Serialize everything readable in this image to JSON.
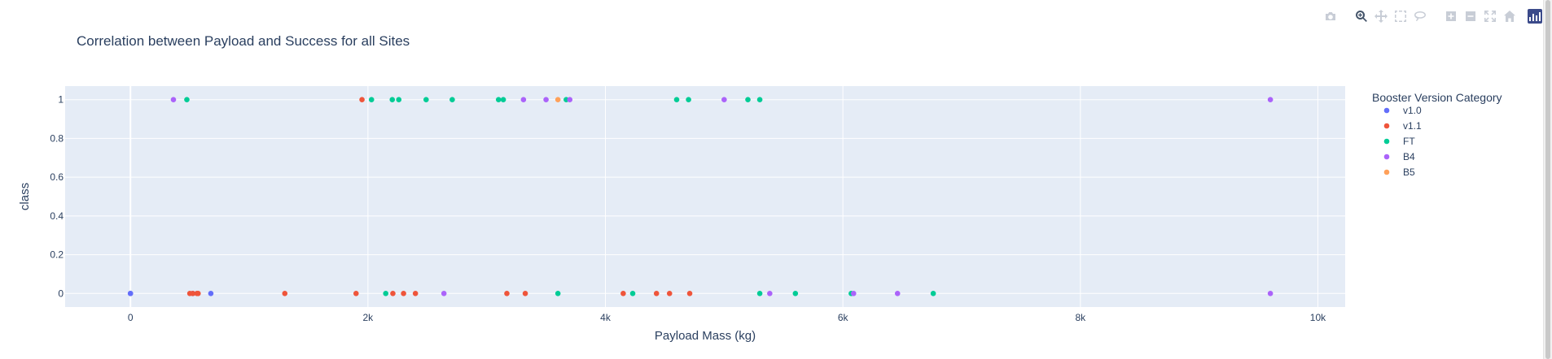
{
  "chart_data": {
    "type": "scatter",
    "title": "Correlation between Payload and Success for all Sites",
    "xlabel": "Payload Mass (kg)",
    "ylabel": "class",
    "xlim": [
      -550,
      10230
    ],
    "ylim": [
      -0.07,
      1.07
    ],
    "x_ticks": [
      0,
      2000,
      4000,
      6000,
      8000,
      10000
    ],
    "x_tick_labels": [
      "0",
      "2k",
      "4k",
      "6k",
      "8k",
      "10k"
    ],
    "y_ticks": [
      0,
      0.2,
      0.4,
      0.6,
      0.8,
      1
    ],
    "y_tick_labels": [
      "0",
      "0.2",
      "0.4",
      "0.6",
      "0.8",
      "1"
    ],
    "grid": true,
    "legend_title": "Booster Version Category",
    "legend_position": "right",
    "series": [
      {
        "name": "v1.0",
        "color": "#636efa",
        "points": [
          [
            0,
            0
          ],
          [
            0,
            0
          ],
          [
            525,
            0
          ],
          [
            677,
            0
          ]
        ]
      },
      {
        "name": "v1.1",
        "color": "#ef553b",
        "points": [
          [
            500,
            0
          ],
          [
            525,
            0
          ],
          [
            560,
            0
          ],
          [
            570,
            0
          ],
          [
            1300,
            0
          ],
          [
            1900,
            0
          ],
          [
            1950,
            1
          ],
          [
            2210,
            0
          ],
          [
            2300,
            0
          ],
          [
            2400,
            0
          ],
          [
            3170,
            0
          ],
          [
            3325,
            0
          ],
          [
            4150,
            0
          ],
          [
            4430,
            0
          ],
          [
            4540,
            0
          ],
          [
            4710,
            0
          ]
        ]
      },
      {
        "name": "FT",
        "color": "#00cc96",
        "points": [
          [
            475,
            1
          ],
          [
            2030,
            1
          ],
          [
            2150,
            0
          ],
          [
            2205,
            1
          ],
          [
            2260,
            1
          ],
          [
            2490,
            1
          ],
          [
            2710,
            1
          ],
          [
            3100,
            1
          ],
          [
            3140,
            1
          ],
          [
            3600,
            0
          ],
          [
            3670,
            1
          ],
          [
            4230,
            0
          ],
          [
            4600,
            1
          ],
          [
            4700,
            1
          ],
          [
            5200,
            1
          ],
          [
            5300,
            1
          ],
          [
            5300,
            0
          ],
          [
            5600,
            0
          ],
          [
            6070,
            0
          ],
          [
            6761,
            0
          ]
        ]
      },
      {
        "name": "B4",
        "color": "#ab63fa",
        "points": [
          [
            362,
            1
          ],
          [
            2640,
            0
          ],
          [
            3310,
            1
          ],
          [
            3500,
            1
          ],
          [
            3700,
            1
          ],
          [
            5000,
            1
          ],
          [
            5384,
            0
          ],
          [
            6090,
            0
          ],
          [
            6460,
            0
          ],
          [
            9600,
            1
          ],
          [
            9600,
            0
          ]
        ]
      },
      {
        "name": "B5",
        "color": "#ffa15a",
        "points": [
          [
            3600,
            1
          ]
        ]
      }
    ]
  },
  "modebar": {
    "buttons": [
      {
        "name": "camera-icon",
        "active": false
      },
      {
        "name": "zoom-icon",
        "active": true
      },
      {
        "name": "pan-icon",
        "active": false
      },
      {
        "name": "box-select-icon",
        "active": false
      },
      {
        "name": "lasso-select-icon",
        "active": false
      },
      {
        "name": "zoom-in-icon",
        "active": false
      },
      {
        "name": "zoom-out-icon",
        "active": false
      },
      {
        "name": "autoscale-icon",
        "active": false
      },
      {
        "name": "reset-axes-icon",
        "active": false
      }
    ]
  }
}
